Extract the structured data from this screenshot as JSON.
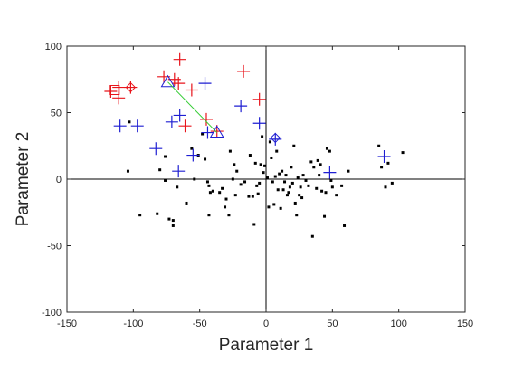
{
  "chart_data": {
    "type": "scatter",
    "title": "",
    "xlabel": "Parameter 1",
    "ylabel": "Parameter 2",
    "xlim": [
      -150,
      150
    ],
    "ylim": [
      -100,
      100
    ],
    "xticks": [
      -150,
      -100,
      -50,
      0,
      50,
      100,
      150
    ],
    "yticks": [
      -100,
      -50,
      0,
      50,
      100
    ],
    "grid": false,
    "legend": "none",
    "reference_lines": {
      "x": 0,
      "y": 0
    },
    "series": [
      {
        "marker": "dot",
        "color": "#000000",
        "points": [
          [
            -103,
            43
          ],
          [
            -104,
            6
          ],
          [
            -95,
            -27
          ],
          [
            -82,
            -26
          ],
          [
            -80,
            7
          ],
          [
            -76,
            17
          ],
          [
            -76,
            -1
          ],
          [
            -73,
            -30
          ],
          [
            -70,
            -31
          ],
          [
            -70,
            -35
          ],
          [
            -67,
            -6
          ],
          [
            -60,
            -18
          ],
          [
            -56,
            23
          ],
          [
            -54,
            0
          ],
          [
            -51,
            18
          ],
          [
            -48,
            34
          ],
          [
            -46,
            15
          ],
          [
            -44,
            -2
          ],
          [
            -43,
            -5
          ],
          [
            -43,
            -27
          ],
          [
            -42,
            -10
          ],
          [
            -40,
            -9
          ],
          [
            -35,
            -10
          ],
          [
            -33,
            -7
          ],
          [
            -31,
            -21
          ],
          [
            -30,
            -15
          ],
          [
            -28,
            -27
          ],
          [
            -27,
            21
          ],
          [
            -25,
            0
          ],
          [
            -24,
            11
          ],
          [
            -23,
            -12
          ],
          [
            -22,
            6
          ],
          [
            -19,
            -4
          ],
          [
            -16,
            -2
          ],
          [
            -13,
            -13
          ],
          [
            -12,
            18
          ],
          [
            -10,
            -13
          ],
          [
            -9,
            -34
          ],
          [
            -8,
            12
          ],
          [
            -7,
            -5
          ],
          [
            -6,
            -11
          ],
          [
            -5,
            -3
          ],
          [
            -4,
            11
          ],
          [
            -3,
            32
          ],
          [
            -2,
            5
          ],
          [
            -1,
            10
          ],
          [
            1,
            1
          ],
          [
            2,
            -21
          ],
          [
            3,
            28
          ],
          [
            4,
            16
          ],
          [
            5,
            -2
          ],
          [
            6,
            -19
          ],
          [
            7,
            2
          ],
          [
            8,
            21
          ],
          [
            9,
            -8
          ],
          [
            10,
            4
          ],
          [
            11,
            -22
          ],
          [
            12,
            6
          ],
          [
            13,
            -8
          ],
          [
            14,
            -2
          ],
          [
            15,
            3
          ],
          [
            16,
            -12
          ],
          [
            17,
            -10
          ],
          [
            18,
            -6
          ],
          [
            19,
            9
          ],
          [
            20,
            -3
          ],
          [
            21,
            25
          ],
          [
            22,
            -18
          ],
          [
            23,
            -27
          ],
          [
            24,
            1
          ],
          [
            25,
            -12
          ],
          [
            26,
            -6
          ],
          [
            27,
            -14
          ],
          [
            28,
            3
          ],
          [
            30,
            -1
          ],
          [
            32,
            -5
          ],
          [
            34,
            13
          ],
          [
            35,
            -43
          ],
          [
            36,
            9
          ],
          [
            38,
            -7
          ],
          [
            39,
            14
          ],
          [
            40,
            3
          ],
          [
            41,
            11
          ],
          [
            42,
            -9
          ],
          [
            44,
            -28
          ],
          [
            45,
            -10
          ],
          [
            46,
            23
          ],
          [
            48,
            21
          ],
          [
            49,
            -1
          ],
          [
            50,
            -6
          ],
          [
            53,
            -12
          ],
          [
            57,
            -5
          ],
          [
            59,
            -35
          ],
          [
            62,
            6
          ],
          [
            85,
            25
          ],
          [
            87,
            9
          ],
          [
            90,
            -6
          ],
          [
            92,
            12
          ],
          [
            95,
            -3
          ],
          [
            103,
            20
          ]
        ]
      },
      {
        "marker": "plus",
        "color": "#e8141b",
        "points": [
          [
            -117,
            66
          ],
          [
            -111,
            61
          ],
          [
            -111,
            69
          ],
          [
            -102,
            69
          ],
          [
            -77,
            77
          ],
          [
            -69,
            75
          ],
          [
            -66,
            72
          ],
          [
            -65,
            90
          ],
          [
            -61,
            40
          ],
          [
            -56,
            67
          ],
          [
            -45,
            45
          ],
          [
            -37,
            36
          ],
          [
            -17,
            81
          ],
          [
            -5,
            60
          ]
        ]
      },
      {
        "marker": "square",
        "color": "#e8141b",
        "points": [
          [
            -114,
            67
          ]
        ]
      },
      {
        "marker": "diamond",
        "color": "#e8141b",
        "points": [
          [
            -102,
            69
          ]
        ]
      },
      {
        "marker": "plus",
        "color": "#1e1ed2",
        "points": [
          [
            -110,
            40
          ],
          [
            -97,
            40
          ],
          [
            -83,
            23
          ],
          [
            -71,
            43
          ],
          [
            -65,
            48
          ],
          [
            -66,
            6
          ],
          [
            -55,
            18
          ],
          [
            -46,
            72
          ],
          [
            -44,
            35
          ],
          [
            -19,
            55
          ],
          [
            -5,
            42
          ],
          [
            7,
            30
          ],
          [
            48,
            5
          ],
          [
            89,
            17
          ]
        ]
      },
      {
        "marker": "triangle",
        "color": "#1e1ed2",
        "points": [
          [
            -74,
            73
          ],
          [
            -37,
            35
          ]
        ]
      },
      {
        "marker": "diamond",
        "color": "#1e1ed2",
        "points": [
          [
            7,
            31
          ]
        ]
      },
      {
        "marker": "line",
        "color": "#33cc33",
        "points": [
          [
            -74,
            73
          ],
          [
            -37,
            35
          ]
        ]
      }
    ]
  }
}
